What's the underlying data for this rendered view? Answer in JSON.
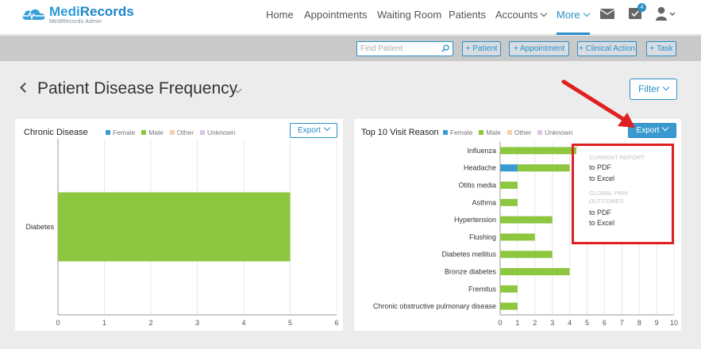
{
  "brand": {
    "name_part1": "Medi",
    "name_part2": "Records",
    "subtitle": "MediRecords Admin"
  },
  "nav": {
    "home": "Home",
    "appointments": "Appointments",
    "waiting_room": "Waiting Room",
    "patients": "Patients",
    "accounts": "Accounts",
    "more": "More",
    "task_badge": "4"
  },
  "actions": {
    "find_placeholder": "Find Patient",
    "add_patient": "+ Patient",
    "add_appointment": "+ Appointment",
    "add_clinical_action": "+ Clinical Action",
    "add_task": "+ Task"
  },
  "page": {
    "title": "Patient Disease Frequency",
    "filter_label": "Filter"
  },
  "legend": {
    "female": "Female",
    "male": "Male",
    "other": "Other",
    "unknown": "Unknown"
  },
  "colors": {
    "female": "#3a9ad0",
    "male": "#8dc63f",
    "other": "#f9cfa8",
    "unknown": "#d9c4e6",
    "accent": "#2a8fc7"
  },
  "chronic": {
    "title": "Chronic Disease",
    "export_label": "Export"
  },
  "visit": {
    "title": "Top 10 Visit Reason",
    "export_label": "Export"
  },
  "export_menu": {
    "current_header": "CURRENT REPORT",
    "current_pdf": "to PDF",
    "current_excel": "to Excel",
    "global_header": "GLOBAL PMH OUTCOMES",
    "global_pdf": "to PDF",
    "global_excel": "to Excel"
  },
  "chart_data": [
    {
      "type": "bar",
      "orientation": "horizontal",
      "title": "Chronic Disease",
      "categories": [
        "Diabetes"
      ],
      "series": [
        {
          "name": "Female",
          "values": [
            0
          ]
        },
        {
          "name": "Male",
          "values": [
            5
          ]
        },
        {
          "name": "Other",
          "values": [
            0
          ]
        },
        {
          "name": "Unknown",
          "values": [
            0
          ]
        }
      ],
      "xlim": [
        0,
        6
      ],
      "xticks": [
        0,
        1,
        2,
        3,
        4,
        5,
        6
      ],
      "legend": "top"
    },
    {
      "type": "bar",
      "orientation": "horizontal",
      "stacked": true,
      "title": "Top 10 Visit Reason",
      "categories": [
        "Influenza",
        "Headache",
        "Otitis media",
        "Asthma",
        "Hypertension",
        "Flushing",
        "Diabetes mellitus",
        "Bronze diabetes",
        "Fremitus",
        "Chronic obstructive pulmonary disease"
      ],
      "series": [
        {
          "name": "Female",
          "values": [
            0,
            1,
            0,
            0,
            0,
            0,
            0,
            0,
            0,
            0
          ]
        },
        {
          "name": "Male",
          "values": [
            4.5,
            3,
            1,
            1,
            3,
            2,
            3,
            4,
            1,
            1
          ]
        },
        {
          "name": "Other",
          "values": [
            0,
            0,
            0,
            0,
            0,
            0,
            0,
            0,
            0,
            0
          ]
        },
        {
          "name": "Unknown",
          "values": [
            0,
            0,
            0,
            0,
            0,
            0,
            0,
            0,
            0,
            0
          ]
        }
      ],
      "xlim": [
        0,
        10
      ],
      "xticks": [
        0,
        1,
        2,
        3,
        4,
        5,
        6,
        7,
        8,
        9,
        10
      ],
      "legend": "top"
    }
  ]
}
